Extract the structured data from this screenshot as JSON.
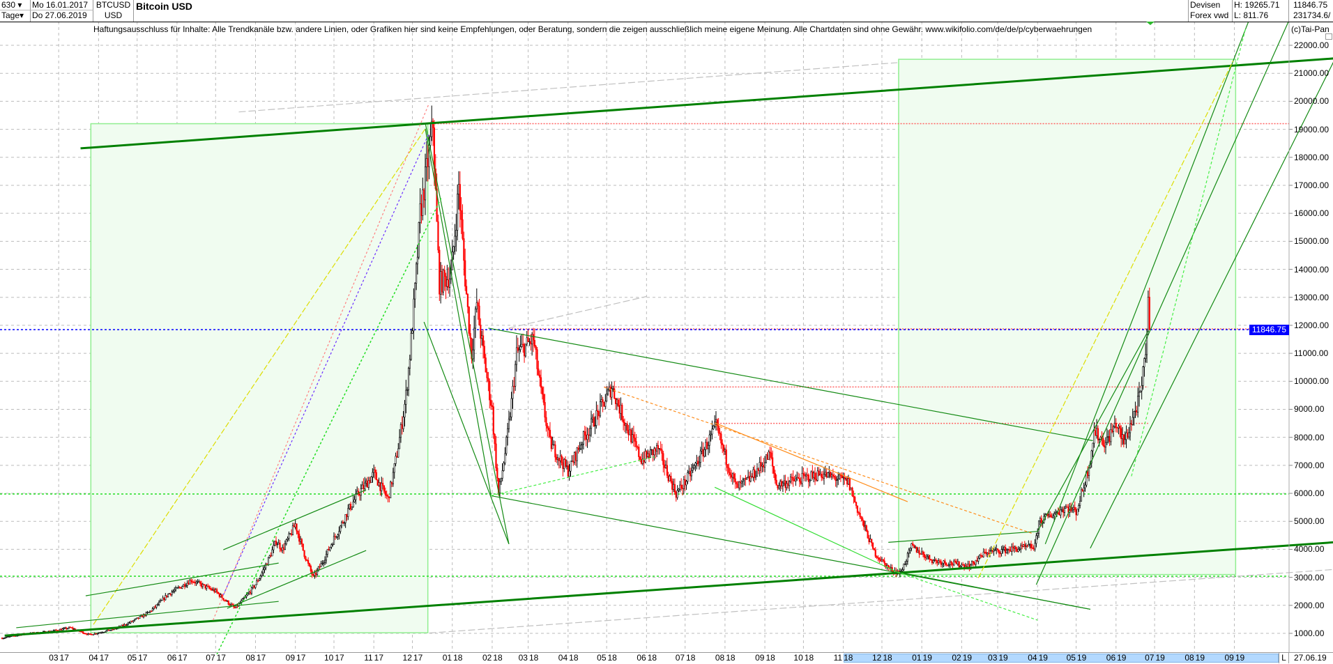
{
  "header": {
    "bars_count": "630",
    "period": "Tage",
    "start_date": "Mo 16.01.2017",
    "end_date": "Do 27.06.2019",
    "symbol": "BTCUSD",
    "currency": "USD",
    "title": "Bitcoin USD",
    "market": "Devisen",
    "source": "Forex vwd",
    "high": "H: 19265.71",
    "low": "L: 811.76",
    "last": "11846.75",
    "volume": "231734.6/",
    "copyright": "(c)Tai-Pan",
    "disclaimer": "Haftungsausschluss für Inhalte: Alle Trendkanäle bzw. andere Linien, oder Grafiken hier sind keine Empfehlungen, oder Beratung, sondern die zeigen ausschließlich meine eigene Meinung. Alle Chartdaten sind ohne Gewähr.  www.wikifolio.com/de/de/p/cyberwaehrungen",
    "axis_mode": "L",
    "axis_date": "27.06.19"
  },
  "colors": {
    "up": "#000000",
    "down": "#ff0000",
    "box": "#f0fcf0",
    "box_border": "#90ee90",
    "thick": "#008000",
    "grid": "#bbbbbb",
    "price_tag": "#0000ff",
    "range_band": "#b3d9ff"
  },
  "chart_data": {
    "type": "candlestick",
    "title": "Bitcoin USD",
    "ylim": [
      1000,
      22000
    ],
    "y_ticks": [
      "1000.00",
      "2000.00",
      "3000.00",
      "4000.00",
      "5000.00",
      "6000.00",
      "7000.00",
      "8000.00",
      "9000.00",
      "10000.00",
      "11000.00",
      "12000.00",
      "13000.00",
      "14000.00",
      "15000.00",
      "16000.00",
      "17000.00",
      "18000.00",
      "19000.00",
      "20000.00",
      "21000.00",
      "22000.00"
    ],
    "x_ticks": [
      {
        "m": "03",
        "y": "17",
        "date": "2017-03-01"
      },
      {
        "m": "04",
        "y": "17",
        "date": "2017-04-01"
      },
      {
        "m": "05",
        "y": "17",
        "date": "2017-05-01"
      },
      {
        "m": "06",
        "y": "17",
        "date": "2017-06-01"
      },
      {
        "m": "07",
        "y": "17",
        "date": "2017-07-01"
      },
      {
        "m": "08",
        "y": "17",
        "date": "2017-08-01"
      },
      {
        "m": "09",
        "y": "17",
        "date": "2017-09-01"
      },
      {
        "m": "10",
        "y": "17",
        "date": "2017-10-01"
      },
      {
        "m": "11",
        "y": "17",
        "date": "2017-11-01"
      },
      {
        "m": "12",
        "y": "17",
        "date": "2017-12-01"
      },
      {
        "m": "01",
        "y": "18",
        "date": "2018-01-01"
      },
      {
        "m": "02",
        "y": "18",
        "date": "2018-02-01"
      },
      {
        "m": "03",
        "y": "18",
        "date": "2018-03-01"
      },
      {
        "m": "04",
        "y": "18",
        "date": "2018-04-01"
      },
      {
        "m": "05",
        "y": "18",
        "date": "2018-05-01"
      },
      {
        "m": "06",
        "y": "18",
        "date": "2018-06-01"
      },
      {
        "m": "07",
        "y": "18",
        "date": "2018-07-01"
      },
      {
        "m": "08",
        "y": "18",
        "date": "2018-08-01"
      },
      {
        "m": "09",
        "y": "18",
        "date": "2018-09-01"
      },
      {
        "m": "10",
        "y": "18",
        "date": "2018-10-01"
      },
      {
        "m": "11",
        "y": "18",
        "date": "2018-11-01"
      },
      {
        "m": "12",
        "y": "18",
        "date": "2018-12-01"
      },
      {
        "m": "01",
        "y": "19",
        "date": "2019-01-01"
      },
      {
        "m": "02",
        "y": "19",
        "date": "2019-02-01"
      },
      {
        "m": "03",
        "y": "19",
        "date": "2019-03-01"
      },
      {
        "m": "04",
        "y": "19",
        "date": "2019-04-01"
      },
      {
        "m": "05",
        "y": "19",
        "date": "2019-05-01"
      },
      {
        "m": "06",
        "y": "19",
        "date": "2019-06-01"
      },
      {
        "m": "07",
        "y": "19",
        "date": "2019-07-01"
      },
      {
        "m": "08",
        "y": "19",
        "date": "2019-08-01"
      },
      {
        "m": "09",
        "y": "19",
        "date": "2019-09-01"
      }
    ],
    "date_range": [
      "2017-01-16",
      "2019-06-27"
    ],
    "range_band_start": "2018-11-01",
    "last_price": 11846.75,
    "last_price_label": "11846.75",
    "price_path": [
      [
        "2017-01-16",
        830
      ],
      [
        "2017-02-01",
        970
      ],
      [
        "2017-02-20",
        1050
      ],
      [
        "2017-03-10",
        1200
      ],
      [
        "2017-03-25",
        950
      ],
      [
        "2017-04-15",
        1180
      ],
      [
        "2017-05-10",
        1750
      ],
      [
        "2017-05-25",
        2400
      ],
      [
        "2017-06-12",
        2900
      ],
      [
        "2017-07-01",
        2500
      ],
      [
        "2017-07-16",
        1900
      ],
      [
        "2017-08-01",
        2750
      ],
      [
        "2017-08-17",
        4300
      ],
      [
        "2017-08-22",
        4000
      ],
      [
        "2017-09-01",
        4900
      ],
      [
        "2017-09-15",
        3000
      ],
      [
        "2017-09-30",
        4300
      ],
      [
        "2017-10-12",
        5400
      ],
      [
        "2017-10-20",
        6000
      ],
      [
        "2017-11-01",
        6700
      ],
      [
        "2017-11-12",
        5800
      ],
      [
        "2017-11-26",
        9500
      ],
      [
        "2017-12-07",
        16000
      ],
      [
        "2017-12-17",
        19200
      ],
      [
        "2017-12-22",
        13500
      ],
      [
        "2017-12-31",
        13800
      ],
      [
        "2018-01-06",
        17000
      ],
      [
        "2018-01-16",
        11000
      ],
      [
        "2018-01-20",
        12800
      ],
      [
        "2018-02-01",
        9000
      ],
      [
        "2018-02-06",
        6000
      ],
      [
        "2018-02-20",
        11000
      ],
      [
        "2018-03-05",
        11500
      ],
      [
        "2018-03-18",
        7800
      ],
      [
        "2018-04-01",
        6800
      ],
      [
        "2018-04-12",
        7900
      ],
      [
        "2018-05-05",
        9800
      ],
      [
        "2018-05-28",
        7200
      ],
      [
        "2018-06-10",
        7600
      ],
      [
        "2018-06-24",
        6000
      ],
      [
        "2018-07-01",
        6400
      ],
      [
        "2018-07-25",
        8400
      ],
      [
        "2018-08-10",
        6200
      ],
      [
        "2018-08-20",
        6500
      ],
      [
        "2018-09-05",
        7400
      ],
      [
        "2018-09-10",
        6300
      ],
      [
        "2018-10-15",
        6700
      ],
      [
        "2018-11-05",
        6400
      ],
      [
        "2018-11-20",
        4500
      ],
      [
        "2018-11-25",
        3900
      ],
      [
        "2018-12-07",
        3300
      ],
      [
        "2018-12-15",
        3150
      ],
      [
        "2018-12-24",
        4100
      ],
      [
        "2019-01-10",
        3600
      ],
      [
        "2019-02-07",
        3400
      ],
      [
        "2019-02-20",
        3900
      ],
      [
        "2019-03-30",
        4100
      ],
      [
        "2019-04-02",
        5000
      ],
      [
        "2019-04-23",
        5500
      ],
      [
        "2019-05-01",
        5350
      ],
      [
        "2019-05-11",
        7000
      ],
      [
        "2019-05-15",
        8200
      ],
      [
        "2019-05-24",
        7800
      ],
      [
        "2019-06-01",
        8500
      ],
      [
        "2019-06-07",
        7800
      ],
      [
        "2019-06-14",
        8700
      ],
      [
        "2019-06-20",
        9500
      ],
      [
        "2019-06-24",
        11000
      ],
      [
        "2019-06-26",
        13000
      ],
      [
        "2019-06-27",
        11846.75
      ]
    ],
    "boxes": [
      {
        "from": [
          "2017-03-26",
          19200
        ],
        "to": [
          "2017-12-13",
          1020
        ]
      },
      {
        "from": [
          "2018-12-14",
          21500
        ],
        "to": [
          "2019-09-02",
          3100
        ]
      }
    ],
    "hlines": [
      {
        "price": 19200,
        "from": "2017-12-14",
        "style": "red-dot"
      },
      {
        "price": 11870,
        "from": "2018-02-14",
        "style": "red-dot"
      },
      {
        "price": 9800,
        "from": "2018-04-29",
        "to": "2019-06-26",
        "style": "red-dot"
      },
      {
        "price": 8500,
        "from": "2018-07-24",
        "to": "2019-06-26",
        "style": "red-dot"
      },
      {
        "price": 5975,
        "style": "green-dot"
      },
      {
        "price": 3040,
        "style": "green-dot"
      },
      {
        "price": 11846.75,
        "style": "blue-dot"
      }
    ],
    "trendlines": [
      {
        "a": [
          "2017-03-18",
          18320
        ],
        "b": [
          "2019-11-17",
          21530
        ],
        "style": "thick"
      },
      {
        "a": [
          "2017-01-18",
          920
        ],
        "b": [
          "2019-11-17",
          4250
        ],
        "style": "thick"
      },
      {
        "a": [
          "2017-12-11",
          19230
        ],
        "b": [
          "2018-02-14",
          4190
        ],
        "style": "green"
      },
      {
        "a": [
          "2017-12-10",
          12120
        ],
        "b": [
          "2018-02-14",
          4190
        ],
        "style": "green"
      },
      {
        "a": [
          "2017-12-11",
          19020
        ],
        "b": [
          "2018-01-31",
          5945
        ],
        "style": "green"
      },
      {
        "a": [
          "2018-01-29",
          11900
        ],
        "b": [
          "2019-05-14",
          7880
        ],
        "style": "green"
      },
      {
        "a": [
          "2018-01-31",
          5915
        ],
        "b": [
          "2019-05-12",
          1860
        ],
        "style": "green"
      },
      {
        "a": [
          "2018-12-13",
          3190
        ],
        "b": [
          "2019-05-12",
          1860
        ],
        "style": "green"
      },
      {
        "a": [
          "2018-12-13",
          3190
        ],
        "b": [
          "2019-04-01",
          1470
        ],
        "style": "lightgreen-dash"
      },
      {
        "a": [
          "2018-07-24",
          6217
        ],
        "b": [
          "2018-12-13",
          3190
        ],
        "style": "lightgreen"
      },
      {
        "a": [
          "2018-01-31",
          5915
        ],
        "b": [
          "2018-06-07",
          7300
        ],
        "style": "lightgreen-dash"
      },
      {
        "a": [
          "2018-12-06",
          4250
        ],
        "b": [
          "2019-04-01",
          4640
        ],
        "style": "green"
      },
      {
        "a": [
          "2019-04-01",
          4640
        ],
        "b": [
          "2019-06-26",
          11800
        ],
        "style": "green"
      },
      {
        "a": [
          "2019-04-07",
          4190
        ],
        "b": [
          "2019-09-18",
          23556
        ],
        "style": "green"
      },
      {
        "a": [
          "2019-03-31",
          2740
        ],
        "b": [
          "2019-10-20",
          23556
        ],
        "style": "green"
      },
      {
        "a": [
          "2019-05-12",
          4040
        ],
        "b": [
          "2019-11-17",
          21400
        ],
        "style": "green"
      },
      {
        "a": [
          "2019-06-13",
          6610
        ],
        "b": [
          "2019-09-10",
          22650
        ],
        "style": "lightgreen-dash"
      },
      {
        "a": [
          "2017-03-28",
          1315
        ],
        "b": [
          "2017-12-11",
          19020
        ],
        "style": "yellow-dash"
      },
      {
        "a": [
          "2019-02-14",
          2980
        ],
        "b": [
          "2019-08-31",
          21440
        ],
        "style": "yellow-dash"
      },
      {
        "a": [
          "2017-07-19",
          19620
        ],
        "b": [
          "2018-12-13",
          21380
        ],
        "style": "gray-dash"
      },
      {
        "a": [
          "2018-02-14",
          11900
        ],
        "b": [
          "2018-06-01",
          13030
        ],
        "style": "gray-dash"
      },
      {
        "a": [
          "2017-12-14",
          1012
        ],
        "b": [
          "2019-11-17",
          3280
        ],
        "style": "gray-dash"
      },
      {
        "a": [
          "2018-04-29",
          9790
        ],
        "b": [
          "2019-03-29",
          4550
        ],
        "style": "orange-dash"
      },
      {
        "a": [
          "2018-07-24",
          8520
        ],
        "b": [
          "2018-12-21",
          5700
        ],
        "style": "orange"
      },
      {
        "a": [
          "2017-07-07",
          2370
        ],
        "b": [
          "2017-12-14",
          18870
        ],
        "style": "purple-dot"
      },
      {
        "a": [
          "2017-06-29",
          1470
        ],
        "b": [
          "2017-12-14",
          19930
        ],
        "style": "pink-dot"
      },
      {
        "a": [
          "2017-07-02",
          255
        ],
        "b": [
          "2017-12-24",
          16600
        ],
        "style": "green-dot"
      },
      {
        "a": [
          "2017-07-07",
          3985
        ],
        "b": [
          "2017-10-26",
          6125
        ],
        "style": "green"
      },
      {
        "a": [
          "2017-07-10",
          1895
        ],
        "b": [
          "2017-10-26",
          3960
        ],
        "style": "green"
      },
      {
        "a": [
          "2017-03-22",
          2340
        ],
        "b": [
          "2017-08-19",
          3510
        ],
        "style": "green"
      },
      {
        "a": [
          "2017-01-27",
          1200
        ],
        "b": [
          "2017-08-19",
          2140
        ],
        "style": "green"
      }
    ]
  }
}
